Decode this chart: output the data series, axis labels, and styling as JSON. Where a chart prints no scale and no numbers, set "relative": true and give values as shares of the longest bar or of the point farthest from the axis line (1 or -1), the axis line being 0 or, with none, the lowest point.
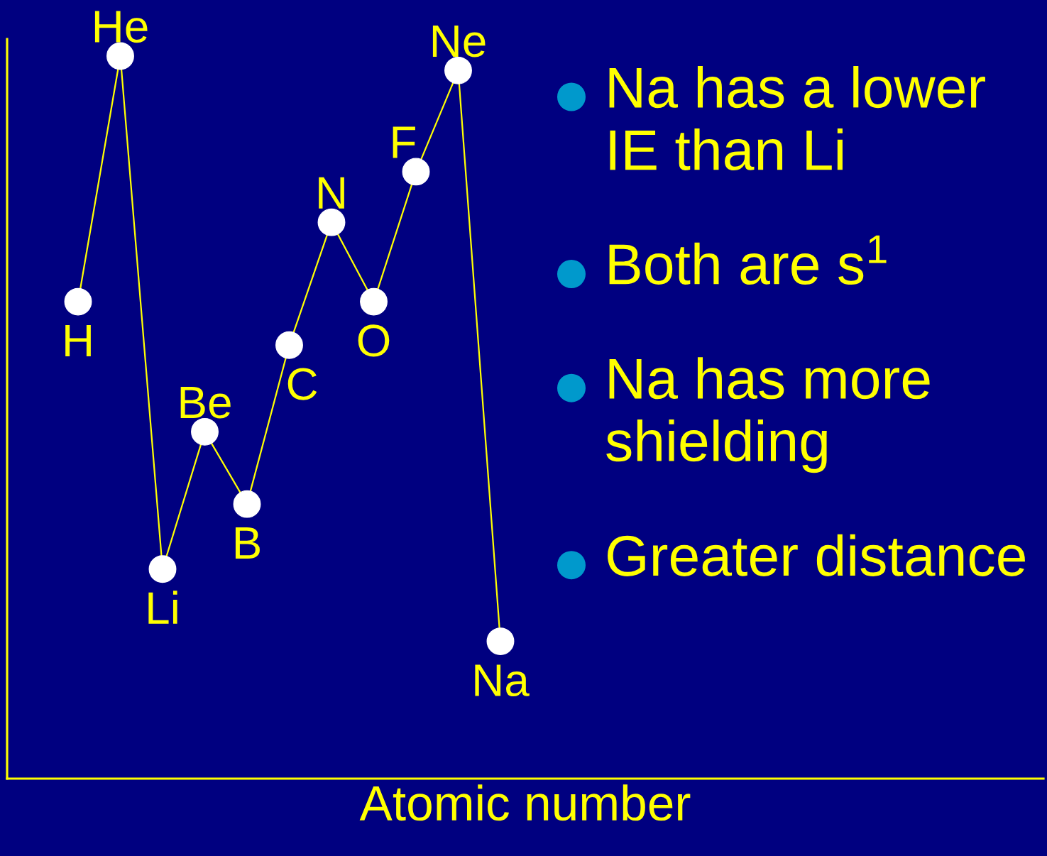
{
  "chart_data": {
    "type": "line",
    "relative": true,
    "xlabel": "Atomic number",
    "categories": [
      "H",
      "He",
      "Li",
      "Be",
      "B",
      "C",
      "N",
      "O",
      "F",
      "Ne",
      "Na"
    ],
    "series": [
      {
        "color": "#ffff00",
        "values": [
          0.66,
          1,
          0.29,
          0.48,
          0.38,
          0.6,
          0.77,
          0.66,
          0.84,
          0.98,
          0.19
        ]
      }
    ],
    "marker": "circle",
    "line_style": "solid",
    "grid": false,
    "tick_labels": false,
    "annotations": [
      "Na has a lower IE than Li",
      "Both are s$^{1}$",
      "Na has more shielding",
      "Greater distance"
    ]
  }
}
